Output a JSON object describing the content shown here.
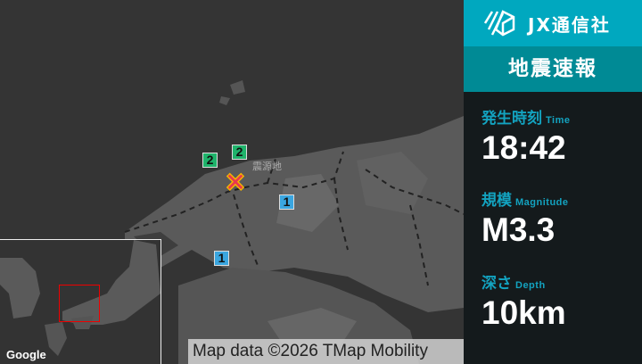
{
  "map": {
    "epicenter_label": "震源地",
    "markers": [
      {
        "intensity": "2"
      },
      {
        "intensity": "2"
      },
      {
        "intensity": "1"
      },
      {
        "intensity": "1"
      }
    ],
    "attribution": "Map data ©2026 TMap Mobility",
    "inset_logo": "Google",
    "colors": {
      "intensity_2": "#1fb36b",
      "intensity_1": "#3aa6e0",
      "epicenter": "#e8384f"
    }
  },
  "panel": {
    "brand": "JX通信社",
    "title": "地震速報",
    "time": {
      "label": "発生時刻",
      "label_en": "Time",
      "value": "18:42"
    },
    "magnitude": {
      "label": "規模",
      "label_en": "Magnitude",
      "value": "M3.3"
    },
    "depth": {
      "label": "深さ",
      "label_en": "Depth",
      "value": "10km"
    },
    "colors": {
      "header": "#00a8bf",
      "title_bar": "#008a95",
      "label": "#13a3c0"
    }
  }
}
